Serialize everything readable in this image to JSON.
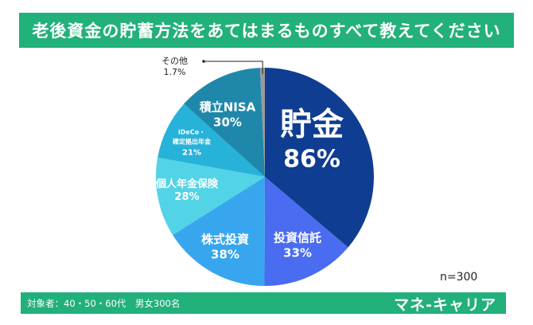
{
  "title": "老後資金の貯蓄方法をあてはまるものすべて教えてください",
  "footer": {
    "note": "対象者：40・50・60代　男女300名",
    "brand": "マネ-キャリア"
  },
  "sample_size": "n=300",
  "chart_data": {
    "type": "pie",
    "title": "老後資金の貯蓄方法をあてはまるものすべて教えてください",
    "slices": [
      {
        "label": "貯金",
        "value": 86,
        "display": "86%",
        "color": "#0f3d91"
      },
      {
        "label": "投資信託",
        "value": 33,
        "display": "33%",
        "color": "#4a6cf0"
      },
      {
        "label": "株式投資",
        "value": 38,
        "display": "38%",
        "color": "#38a6ee"
      },
      {
        "label": "個人年金保険",
        "value": 28,
        "display": "28%",
        "color": "#52d3e6"
      },
      {
        "label": "iDeCo・確定拠出年金",
        "label_line1": "iDeCo・",
        "label_line2": "確定拠出年金",
        "value": 21,
        "display": "21%",
        "color": "#27b2da"
      },
      {
        "label": "積立NISA",
        "value": 30,
        "display": "30%",
        "color": "#1f88aa"
      },
      {
        "label": "その他",
        "value": 1.7,
        "display": "1.7%",
        "color": "#9a9a9a"
      }
    ],
    "start": "top",
    "direction": "clockwise",
    "legend": "none"
  }
}
